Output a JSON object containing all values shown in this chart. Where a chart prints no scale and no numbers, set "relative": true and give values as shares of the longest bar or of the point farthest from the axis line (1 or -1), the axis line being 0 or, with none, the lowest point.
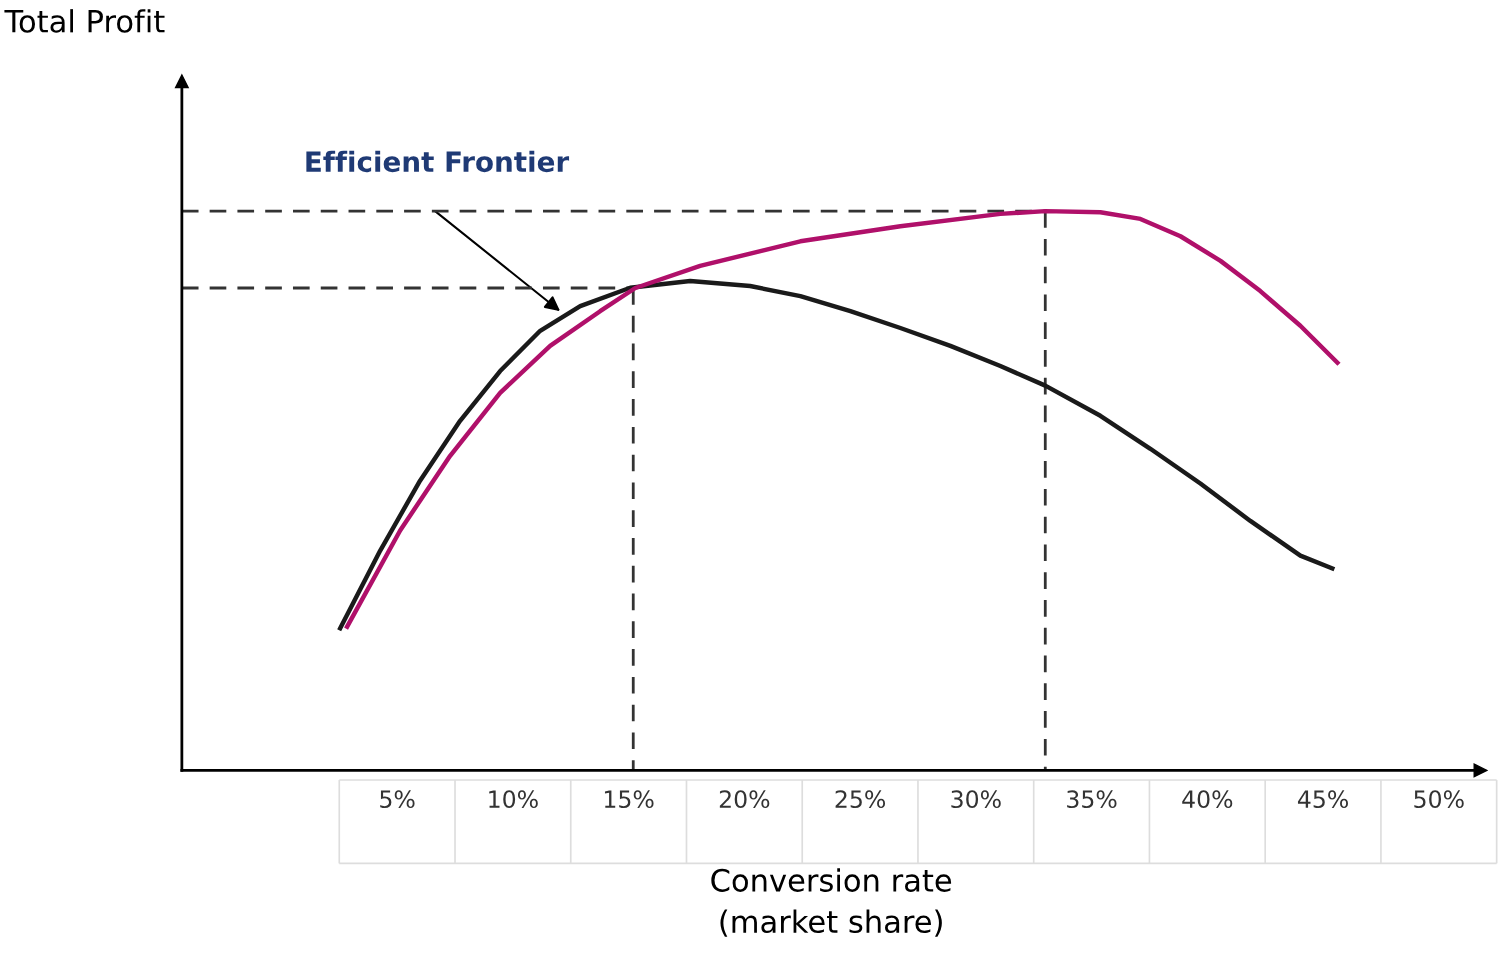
{
  "chart_data": {
    "type": "line",
    "relative": true,
    "xlabel": "Conversion rate\n(market share)",
    "xlim": [
      -4.3,
      51.8
    ],
    "xticks": [
      {
        "value": 5,
        "label": "5%"
      },
      {
        "value": 10,
        "label": "10%"
      },
      {
        "value": 15,
        "label": "15%"
      },
      {
        "value": 20,
        "label": "20%"
      },
      {
        "value": 25,
        "label": "25%"
      },
      {
        "value": 30,
        "label": "30%"
      },
      {
        "value": 35,
        "label": "35%"
      },
      {
        "value": 40,
        "label": "40%"
      },
      {
        "value": 45,
        "label": "45%"
      },
      {
        "value": 50,
        "label": "50%"
      }
    ],
    "grid": false,
    "legend": false,
    "marker": "none",
    "annotations": [
      "Total Profit",
      "Efficient Frontier"
    ],
    "series": [
      {
        "color": "#1a1a1a",
        "line_style": "solid",
        "x": [
          2.54,
          4.27,
          5.99,
          7.72,
          9.45,
          11.18,
          12.91,
          15.07,
          17.66,
          20.25,
          22.42,
          24.58,
          26.74,
          28.9,
          31.06,
          33.0,
          35.38,
          37.54,
          39.7,
          41.86,
          44.02,
          45.4
        ],
        "values": [
          0.254,
          0.393,
          0.518,
          0.625,
          0.714,
          0.786,
          0.83,
          0.863,
          0.875,
          0.866,
          0.848,
          0.821,
          0.791,
          0.759,
          0.723,
          0.688,
          0.634,
          0.575,
          0.513,
          0.446,
          0.384,
          0.361
        ]
      },
      {
        "color": "#b0106a",
        "line_style": "solid",
        "x": [
          2.84,
          5.13,
          7.29,
          9.45,
          11.61,
          13.77,
          15.29,
          18.09,
          22.42,
          26.74,
          31.06,
          33.0,
          35.38,
          37.11,
          38.84,
          40.57,
          42.29,
          44.02,
          45.62
        ],
        "values": [
          0.257,
          0.429,
          0.5625,
          0.675,
          0.759,
          0.821,
          0.8625,
          0.902,
          0.946,
          0.973,
          0.995,
          1.0,
          0.998,
          0.986,
          0.955,
          0.911,
          0.857,
          0.795,
          0.729
        ]
      },
      {
        "color": "#333333",
        "line_style": "dashed",
        "x": [
          -4.3,
          15.2
        ],
        "values": [
          0.8625,
          0.8625
        ]
      },
      {
        "color": "#333333",
        "line_style": "dashed",
        "x": [
          15.2,
          15.2
        ],
        "values": [
          0.8625,
          0
        ]
      },
      {
        "color": "#333333",
        "line_style": "dashed",
        "x": [
          -4.3,
          33.0
        ],
        "values": [
          1.0,
          1.0
        ]
      },
      {
        "color": "#333333",
        "line_style": "dashed",
        "x": [
          33.0,
          33.0
        ],
        "values": [
          1.0,
          0
        ]
      }
    ]
  }
}
